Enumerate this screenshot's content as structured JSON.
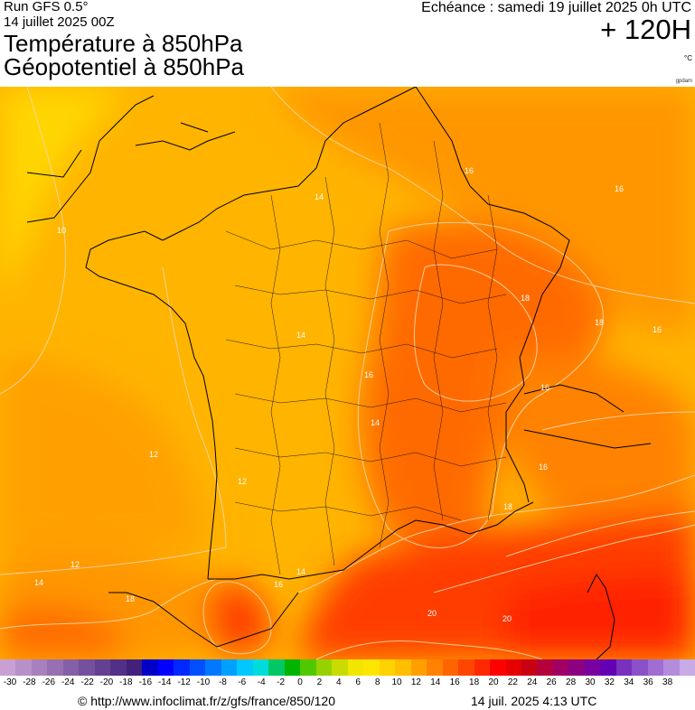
{
  "header": {
    "run": "Run GFS 0.5°",
    "date": "14 juillet 2025 00Z",
    "title_line1": "Température à 850hPa",
    "title_line2": "Géopotentiel à 850hPa",
    "echeance": "Echéance : samedi 19 juillet 2025 0h UTC",
    "horizon": "+ 120H",
    "unit": "°C",
    "source_tag": "gpdam"
  },
  "map": {
    "isotherm_labels": [
      "10",
      "12",
      "12",
      "12",
      "14",
      "14",
      "14",
      "14",
      "14",
      "16",
      "16",
      "16",
      "16",
      "16",
      "16",
      "16",
      "18",
      "18",
      "18",
      "18",
      "20",
      "20"
    ],
    "colors": {
      "cool": "#ffd600",
      "mild": "#ffb400",
      "warm": "#ff9600",
      "hot": "#ff6a00",
      "very_hot": "#ff3c00",
      "sea_hot": "#ff2200",
      "border": "#000000",
      "contour": "#f4d7a8"
    }
  },
  "legend": {
    "labels": [
      "-30",
      "-28",
      "-26",
      "-24",
      "-22",
      "-20",
      "-18",
      "-16",
      "-14",
      "-12",
      "-10",
      "-8",
      "-6",
      "-4",
      "-2",
      "0",
      "2",
      "4",
      "6",
      "8",
      "10",
      "12",
      "14",
      "16",
      "18",
      "20",
      "22",
      "24",
      "26",
      "28",
      "30",
      "32",
      "34",
      "36",
      "38"
    ],
    "colors": [
      "#c9a0d4",
      "#b890c9",
      "#a780be",
      "#9670b3",
      "#8560a8",
      "#74509d",
      "#644092",
      "#533087",
      "#43207c",
      "#0000c8",
      "#0000ff",
      "#0028ff",
      "#0050ff",
      "#0078ff",
      "#00a0ff",
      "#00c8ff",
      "#00dcdc",
      "#00c864",
      "#00b400",
      "#50c800",
      "#96d200",
      "#c8dc00",
      "#f0e600",
      "#ffe600",
      "#ffd200",
      "#ffbe00",
      "#ffa000",
      "#ff8200",
      "#ff6400",
      "#ff4600",
      "#ff2800",
      "#ff0000",
      "#e60000",
      "#c80014",
      "#b4003c",
      "#a00064",
      "#8c0082",
      "#7800a0",
      "#6400b4",
      "#7832be",
      "#8c50c8",
      "#a06ed2",
      "#b48cdc",
      "#c8aae6"
    ]
  },
  "footer": {
    "copyright": "© http://www.infoclimat.fr/z/gfs/france/850/120",
    "timestamp": "14 juil. 2025  4:13 UTC"
  }
}
